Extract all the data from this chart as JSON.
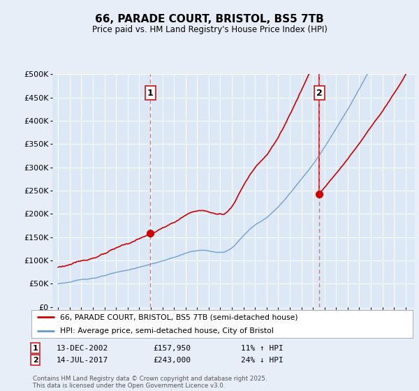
{
  "title": "66, PARADE COURT, BRISTOL, BS5 7TB",
  "subtitle": "Price paid vs. HM Land Registry's House Price Index (HPI)",
  "background_color": "#e8eef8",
  "plot_bg_color": "#dce8f5",
  "ylim": [
    0,
    500000
  ],
  "yticks": [
    0,
    50000,
    100000,
    150000,
    200000,
    250000,
    300000,
    350000,
    400000,
    450000,
    500000
  ],
  "ytick_labels": [
    "£0",
    "£50K",
    "£100K",
    "£150K",
    "£200K",
    "£250K",
    "£300K",
    "£350K",
    "£400K",
    "£450K",
    "£500K"
  ],
  "sale1_date_x": 2002.96,
  "sale1_price": 157950,
  "sale1_label": "1",
  "sale1_date_str": "13-DEC-2002",
  "sale1_amount": "£157,950",
  "sale1_hpi": "11% ↑ HPI",
  "sale2_date_x": 2017.54,
  "sale2_price": 243000,
  "sale2_label": "2",
  "sale2_date_str": "14-JUL-2017",
  "sale2_amount": "£243,000",
  "sale2_hpi": "24% ↓ HPI",
  "legend_line1": "66, PARADE COURT, BRISTOL, BS5 7TB (semi-detached house)",
  "legend_line2": "HPI: Average price, semi-detached house, City of Bristol",
  "footer": "Contains HM Land Registry data © Crown copyright and database right 2025.\nThis data is licensed under the Open Government Licence v3.0.",
  "line_red_color": "#cc0000",
  "line_blue_color": "#6699cc",
  "dashed_color": "#ff6666",
  "xmin": 1994.5,
  "xmax": 2025.8
}
